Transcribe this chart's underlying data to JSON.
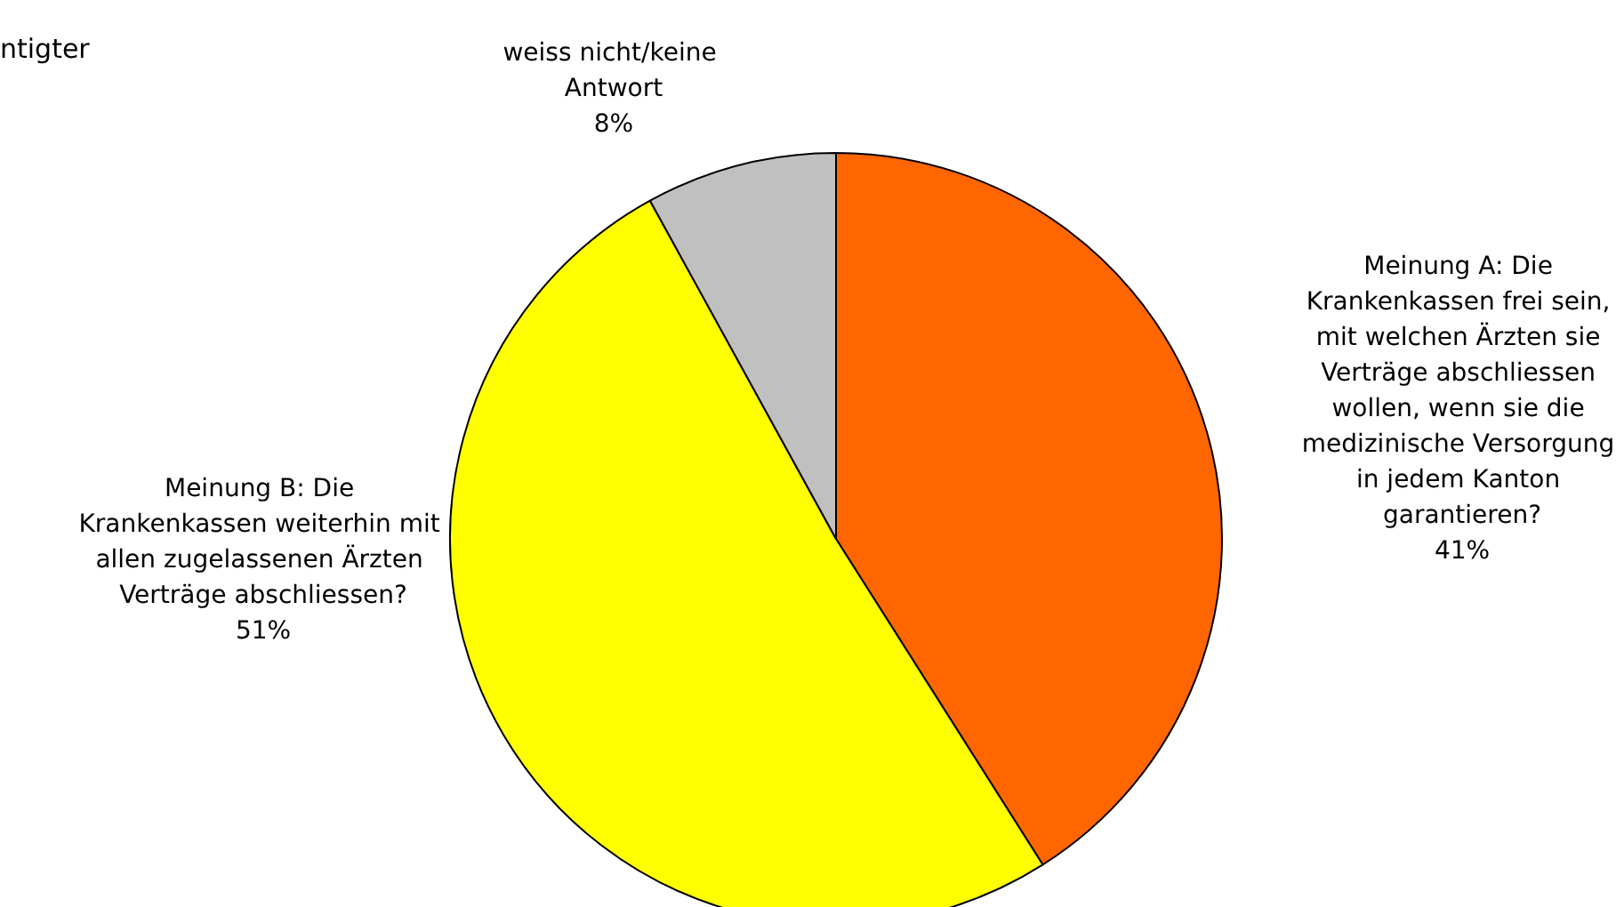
{
  "chart_data": {
    "type": "pie",
    "categories": [
      "Meinung A: Die Krankenkassen frei sein, mit welchen Ärzten sie Verträge abschliessen wollen, wenn sie die medizinische Versorgung in jedem Kanton garantieren?",
      "Meinung B: Die Krankenkassen weiterhin mit allen zugelassenen Ärzten Verträge abschliessen?",
      "weiss nicht/keine Antwort"
    ],
    "values": [
      41,
      51,
      8
    ],
    "colors": [
      "#ff6600",
      "#ffff00",
      "#c0c0c0"
    ],
    "value_labels": [
      "41%",
      "51%",
      "8%"
    ],
    "annotations": [
      "ntigter"
    ]
  }
}
